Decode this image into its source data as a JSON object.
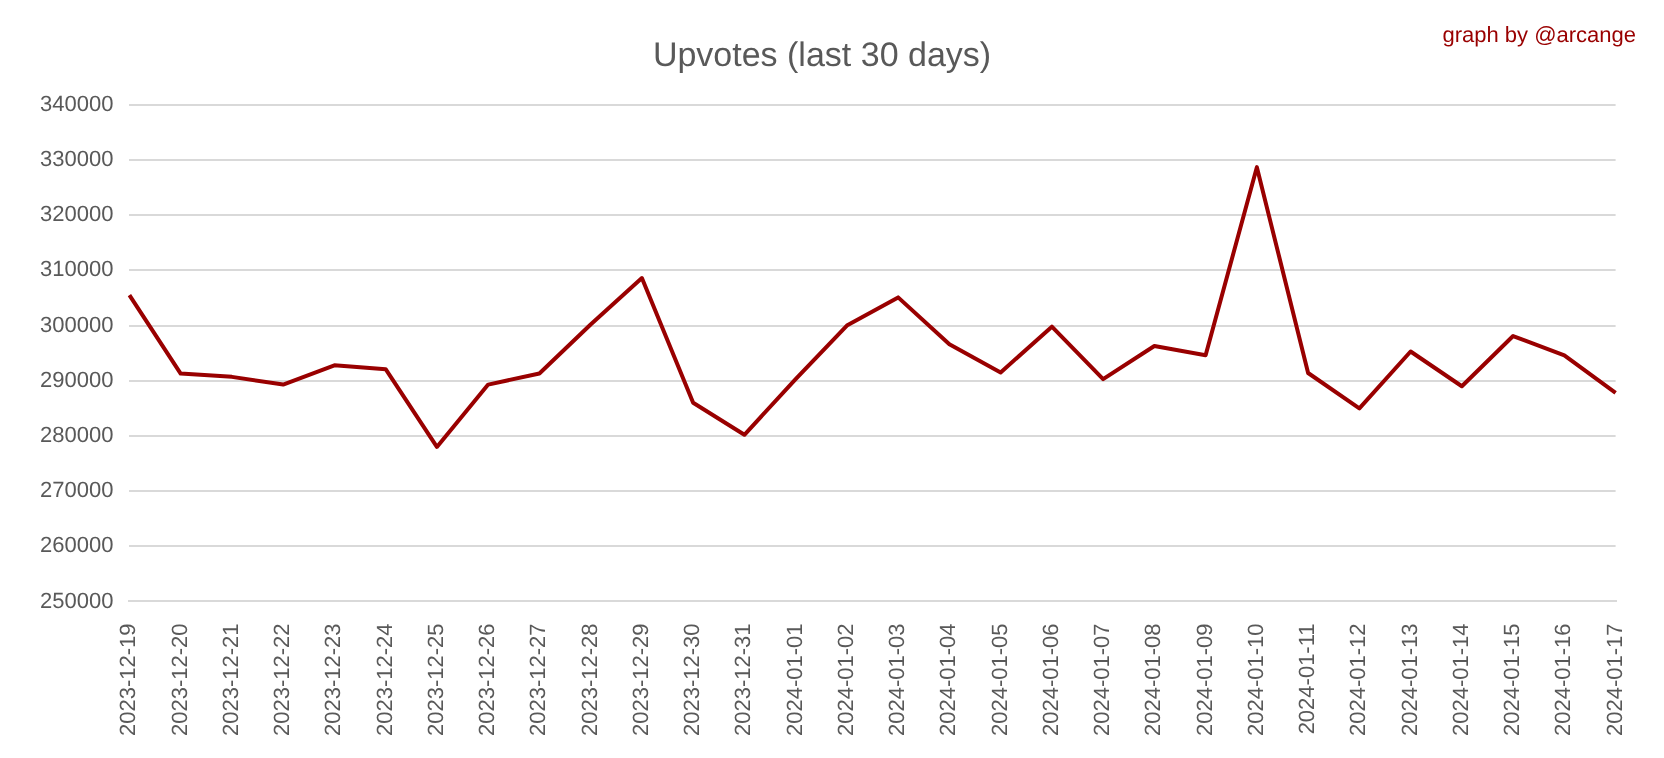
{
  "chart_data": {
    "type": "line",
    "title": "Upvotes (last 30 days)",
    "annotations": [
      "graph by @arcange"
    ],
    "categories": [
      "2023-12-19",
      "2023-12-20",
      "2023-12-21",
      "2023-12-22",
      "2023-12-23",
      "2023-12-24",
      "2023-12-25",
      "2023-12-26",
      "2023-12-27",
      "2023-12-28",
      "2023-12-29",
      "2023-12-30",
      "2023-12-31",
      "2024-01-01",
      "2024-01-02",
      "2024-01-03",
      "2024-01-04",
      "2024-01-05",
      "2024-01-06",
      "2024-01-07",
      "2024-01-08",
      "2024-01-09",
      "2024-01-10",
      "2024-01-11",
      "2024-01-12",
      "2024-01-13",
      "2024-01-14",
      "2024-01-15",
      "2024-01-16",
      "2024-01-17"
    ],
    "series": [
      {
        "color": "#990000",
        "values": [
          305500,
          291300,
          290700,
          289300,
          292800,
          292100,
          278000,
          289300,
          291300,
          300200,
          308600,
          286000,
          280200,
          290300,
          300000,
          305100,
          296600,
          291500,
          299800,
          290300,
          296300,
          294600,
          328700,
          291400,
          285000,
          295300,
          289000,
          298100,
          294600,
          287800
        ]
      }
    ],
    "ylim": [
      250000,
      340000
    ],
    "yticks": [
      250000,
      260000,
      270000,
      280000,
      290000,
      300000,
      310000,
      320000,
      330000,
      340000
    ],
    "grid": "y",
    "legend": false,
    "marker": "none",
    "line_style": "solid"
  }
}
